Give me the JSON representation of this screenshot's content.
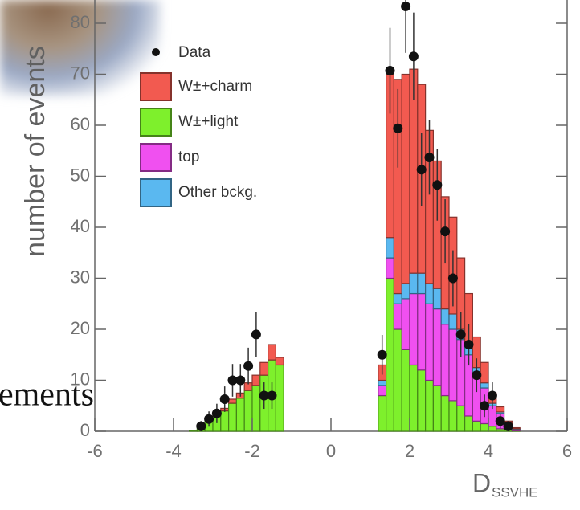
{
  "chart_data": {
    "type": "histogram",
    "ylabel": "number of events",
    "xlabel": "D",
    "xlabel_sub": "SSVHE",
    "overlay_text": "ements",
    "xlim": [
      -6,
      6
    ],
    "ylim": [
      0,
      85
    ],
    "xticks": [
      -6,
      -4,
      -2,
      0,
      2,
      4,
      6
    ],
    "yticks": [
      0,
      10,
      20,
      30,
      40,
      50,
      60,
      70,
      80
    ],
    "bins": [
      -3.6,
      -3.4,
      -3.2,
      -3.0,
      -2.8,
      -2.6,
      -2.4,
      -2.2,
      -2.0,
      -1.8,
      -1.6,
      -1.4,
      -1.2,
      -1.0,
      -0.8,
      -0.6,
      -0.4,
      -0.2,
      0,
      0.2,
      0.4,
      0.6,
      0.8,
      1.0,
      1.2,
      1.4,
      1.6,
      1.8,
      2.0,
      2.2,
      2.4,
      2.6,
      2.8,
      3.0,
      3.2,
      3.4,
      3.6,
      3.8,
      4.0,
      4.2,
      4.4,
      4.6,
      4.8
    ],
    "series": [
      {
        "name": "W±+light",
        "color": "#7ef02c",
        "values": [
          0.2,
          0.6,
          2,
          3,
          4,
          5.5,
          6.5,
          8,
          9,
          11,
          14,
          13,
          0,
          0,
          0,
          0,
          0,
          0,
          0,
          0,
          0,
          0,
          0,
          0,
          7,
          30,
          20,
          16,
          13,
          12,
          10,
          9,
          7,
          6,
          5,
          3,
          2,
          1.5,
          1,
          0.5,
          0.3,
          0.1
        ]
      },
      {
        "name": "top",
        "color": "#f050f0",
        "values": [
          0,
          0,
          0,
          0,
          0,
          0,
          0,
          0,
          0,
          0,
          0,
          0,
          0,
          0,
          0,
          0,
          0,
          0,
          0,
          0,
          0,
          0,
          0,
          0,
          2,
          4,
          5,
          10,
          14,
          15,
          15,
          15,
          14,
          14,
          13,
          12,
          9,
          7,
          4,
          3,
          1,
          0.3
        ]
      },
      {
        "name": "Other bckg.",
        "color": "#5ab8f0",
        "values": [
          0,
          0,
          0,
          0,
          0,
          0,
          0,
          0,
          0,
          0,
          0,
          0,
          0,
          0,
          0,
          0,
          0,
          0,
          0,
          0,
          0,
          0,
          0,
          0,
          1,
          4,
          2,
          3,
          4,
          4,
          4,
          4,
          3,
          3,
          2,
          2,
          1.5,
          1,
          0.5,
          0.3,
          0.2,
          0.1
        ]
      },
      {
        "name": "W±+charm",
        "color": "#f25a50",
        "values": [
          0,
          0,
          0,
          0.3,
          0.5,
          0.8,
          1,
          1.5,
          2,
          2.5,
          3,
          1.5,
          0,
          0,
          0,
          0,
          0,
          0,
          0,
          0,
          0,
          0,
          0,
          0,
          3,
          32,
          42,
          41,
          40,
          37,
          30,
          25,
          22,
          19,
          14,
          10,
          6,
          4,
          2,
          1,
          0.5,
          0.2
        ]
      }
    ],
    "points": {
      "name": "Data",
      "x": [
        -3.3,
        -3.1,
        -2.9,
        -2.7,
        -2.5,
        -2.3,
        -2.1,
        -1.9,
        -1.7,
        -1.5,
        1.3,
        1.5,
        1.7,
        1.9,
        2.1,
        2.3,
        2.5,
        2.7,
        2.9,
        3.1,
        3.3,
        3.5,
        3.7,
        3.9,
        4.1,
        4.3,
        4.5
      ],
      "values": [
        1,
        2.4,
        3.5,
        6.3,
        10,
        10,
        12.8,
        19,
        7,
        7,
        15,
        70.7,
        59.4,
        83.3,
        73.5,
        51.3,
        53.7,
        48.3,
        39.2,
        30,
        19,
        17,
        11,
        5,
        7,
        2,
        1
      ],
      "errors": [
        1,
        1.5,
        1.9,
        2.5,
        3.2,
        3.2,
        3.6,
        4.4,
        2.6,
        2.6,
        3.9,
        8.4,
        7.7,
        9.1,
        8.6,
        7.2,
        7.3,
        7,
        6.3,
        5.5,
        4.4,
        4.1,
        3.3,
        2.2,
        2.6,
        1.4,
        1
      ]
    }
  }
}
